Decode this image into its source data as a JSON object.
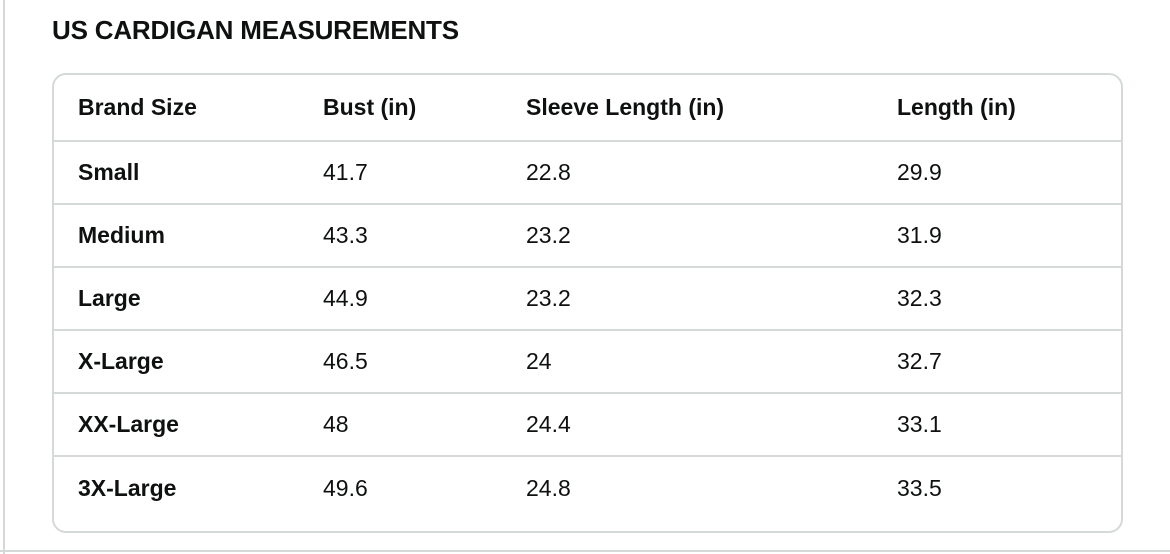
{
  "title": "US CARDIGAN MEASUREMENTS",
  "size_chart": {
    "columns": [
      "Brand Size",
      "Bust (in)",
      "Sleeve Length (in)",
      "Length (in)"
    ],
    "rows": [
      [
        "Small",
        "41.7",
        "22.8",
        "29.9"
      ],
      [
        "Medium",
        "43.3",
        "23.2",
        "31.9"
      ],
      [
        "Large",
        "44.9",
        "23.2",
        "32.3"
      ],
      [
        "X-Large",
        "46.5",
        "24",
        "32.7"
      ],
      [
        "XX-Large",
        "48",
        "24.4",
        "33.1"
      ],
      [
        "3X-Large",
        "49.6",
        "24.8",
        "33.5"
      ]
    ]
  },
  "colors": {
    "text": "#0F1111",
    "border": "#D5D9D9",
    "background": "#FFFFFF"
  }
}
